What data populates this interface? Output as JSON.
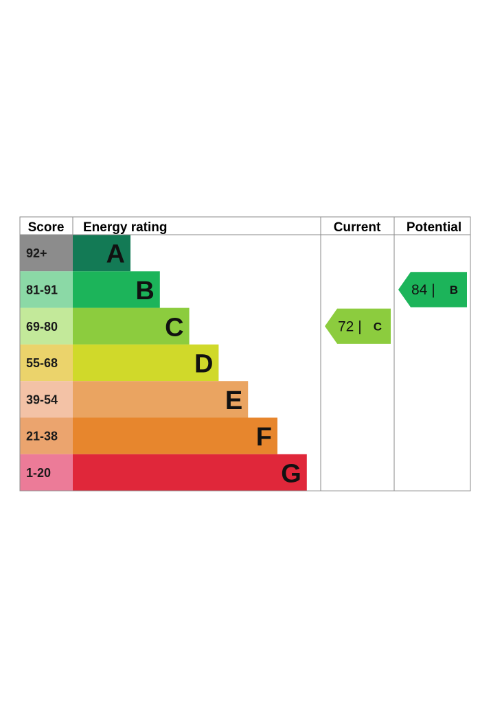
{
  "chart_data": {
    "type": "bar",
    "headers": {
      "score": "Score",
      "energy_rating": "Energy rating",
      "current": "Current",
      "potential": "Potential"
    },
    "bands": [
      {
        "letter": "A",
        "score": "92+",
        "color": "#137a55",
        "score_bg": "#8c8c8c"
      },
      {
        "letter": "B",
        "score": "81-91",
        "color": "#1cb45a",
        "score_bg": "#8bd9a6"
      },
      {
        "letter": "C",
        "score": "69-80",
        "color": "#8ccc3e",
        "score_bg": "#c3e99a"
      },
      {
        "letter": "D",
        "score": "55-68",
        "color": "#d0d92a",
        "score_bg": "#ebd36b"
      },
      {
        "letter": "E",
        "score": "39-54",
        "color": "#eaa461",
        "score_bg": "#f3c2a6"
      },
      {
        "letter": "F",
        "score": "21-38",
        "color": "#e7862d",
        "score_bg": "#eba46e"
      },
      {
        "letter": "G",
        "score": "1-20",
        "color": "#e0273a",
        "score_bg": "#ec7b98"
      }
    ],
    "current": {
      "value": 72,
      "separator": "|",
      "letter": "C"
    },
    "potential": {
      "value": 84,
      "separator": "|",
      "letter": "B"
    }
  }
}
